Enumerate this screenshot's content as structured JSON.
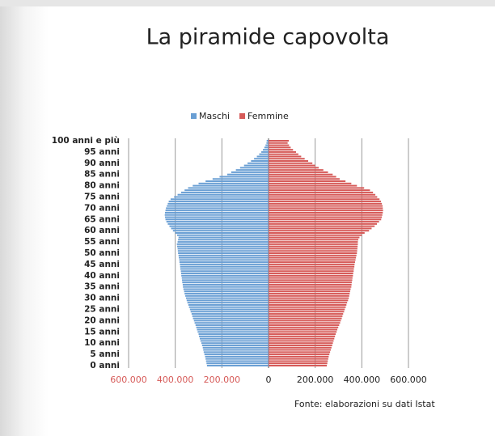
{
  "chart_data": {
    "type": "pyramid",
    "title": "La piramide capovolta",
    "source": "Fonte: elaborazioni su dati Istat",
    "categories": [
      "0 anni",
      null,
      null,
      null,
      null,
      "5 anni",
      null,
      null,
      null,
      null,
      "10 anni",
      null,
      null,
      null,
      null,
      "15 anni",
      null,
      null,
      null,
      null,
      "20 anni",
      null,
      null,
      null,
      null,
      "25 anni",
      null,
      null,
      null,
      null,
      "30 anni",
      null,
      null,
      null,
      null,
      "35 anni",
      null,
      null,
      null,
      null,
      "40 anni",
      null,
      null,
      null,
      null,
      "45 anni",
      null,
      null,
      null,
      null,
      "50 anni",
      null,
      null,
      null,
      null,
      "55 anni",
      null,
      null,
      null,
      null,
      "60 anni",
      null,
      null,
      null,
      null,
      "65 anni",
      null,
      null,
      null,
      null,
      "70 anni",
      null,
      null,
      null,
      null,
      "75 anni",
      null,
      null,
      null,
      null,
      "80 anni",
      null,
      null,
      null,
      null,
      "85 anni",
      null,
      null,
      null,
      null,
      "90 anni",
      null,
      null,
      null,
      null,
      "95 anni",
      null,
      null,
      null,
      null,
      "100 anni e più"
    ],
    "series": [
      {
        "name": "Maschi",
        "color": "#6a9fd4",
        "values": [
          -264000,
          -266000,
          -268000,
          -270000,
          -272000,
          -275000,
          -278000,
          -280000,
          -282000,
          -285000,
          -288000,
          -292000,
          -295000,
          -298000,
          -300000,
          -304000,
          -307000,
          -310000,
          -313000,
          -317000,
          -320000,
          -324000,
          -327000,
          -330000,
          -334000,
          -337000,
          -341000,
          -344000,
          -348000,
          -351000,
          -354000,
          -357000,
          -360000,
          -362000,
          -365000,
          -367000,
          -368000,
          -370000,
          -371000,
          -372000,
          -374000,
          -375000,
          -376000,
          -378000,
          -379000,
          -380000,
          -382000,
          -383000,
          -385000,
          -386000,
          -388000,
          -389000,
          -390000,
          -392000,
          -393000,
          -390000,
          -388000,
          -386000,
          -392000,
          -400000,
          -410000,
          -418000,
          -425000,
          -432000,
          -438000,
          -442000,
          -444000,
          -445000,
          -444000,
          -442000,
          -440000,
          -436000,
          -432000,
          -428000,
          -420000,
          -405000,
          -390000,
          -375000,
          -360000,
          -345000,
          -325000,
          -300000,
          -270000,
          -240000,
          -210000,
          -177000,
          -160000,
          -140000,
          -122000,
          -105000,
          -90000,
          -75000,
          -62000,
          -50000,
          -40000,
          -31000,
          -24000,
          -18000,
          -13000,
          -9000,
          -8000
        ]
      },
      {
        "name": "Femmine",
        "color": "#d65a58",
        "values": [
          250000,
          252000,
          254000,
          256000,
          258000,
          261000,
          264000,
          267000,
          270000,
          273000,
          276000,
          279000,
          282000,
          285000,
          288000,
          292000,
          295000,
          299000,
          303000,
          307000,
          310000,
          314000,
          317000,
          320000,
          324000,
          327000,
          331000,
          334000,
          337000,
          341000,
          344000,
          346000,
          348000,
          350000,
          352000,
          355000,
          356000,
          357000,
          359000,
          360000,
          362000,
          363000,
          365000,
          366000,
          368000,
          369000,
          371000,
          373000,
          375000,
          377000,
          379000,
          380000,
          381000,
          382000,
          383000,
          383000,
          385000,
          390000,
          400000,
          412000,
          431000,
          442000,
          455000,
          465000,
          474000,
          483000,
          486000,
          488000,
          490000,
          491000,
          490000,
          489000,
          486000,
          482000,
          476000,
          466000,
          458000,
          448000,
          435000,
          410000,
          379000,
          355000,
          330000,
          305000,
          290000,
          275000,
          255000,
          235000,
          215000,
          200000,
          188000,
          170000,
          155000,
          140000,
          128000,
          118000,
          105000,
          95000,
          88000,
          82000,
          87000
        ]
      }
    ],
    "xlim": [
      -600000,
      600000
    ],
    "xticks": [
      {
        "value": -600000,
        "label": "600.000"
      },
      {
        "value": -400000,
        "label": "400.000"
      },
      {
        "value": -200000,
        "label": "200.000"
      },
      0,
      {
        "value": 200000,
        "label": "200.000"
      },
      {
        "value": 400000,
        "label": "400.000"
      },
      {
        "value": 600000,
        "label": "600.000"
      }
    ],
    "negative_tick_color": "#d65a58",
    "grid": true,
    "legend": "top"
  }
}
